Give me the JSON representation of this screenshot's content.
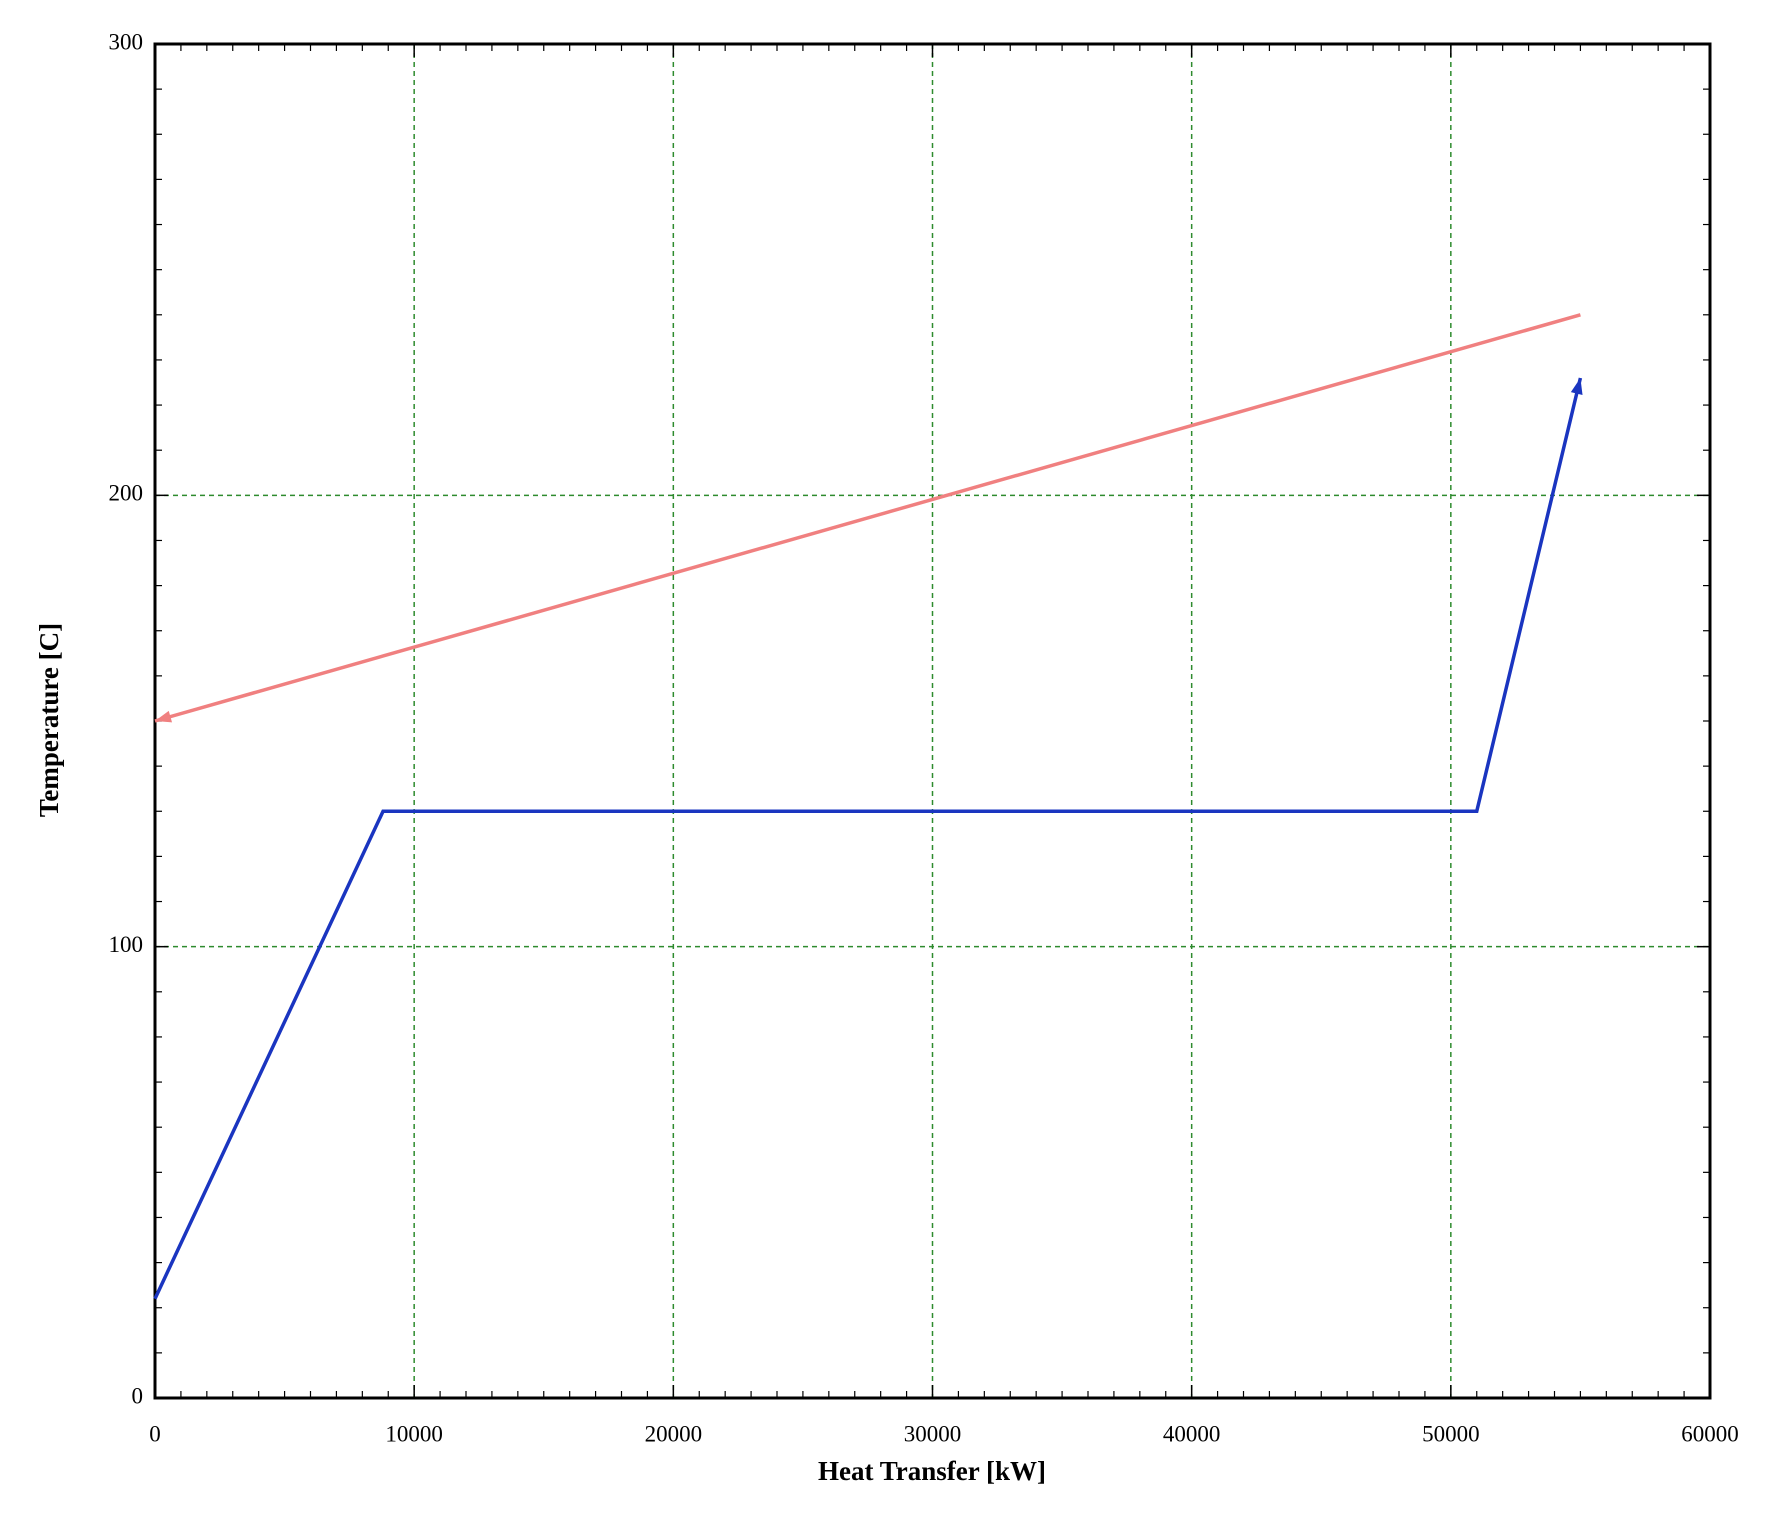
{
  "chart_data": {
    "type": "line",
    "xlabel": "Heat Transfer [kW]",
    "ylabel": "Temperature [C]",
    "xlim": [
      0,
      60000
    ],
    "xticks": [
      0,
      10000,
      20000,
      30000,
      40000,
      50000,
      60000
    ],
    "ylim": [
      0,
      300
    ],
    "yticks": [
      0,
      100,
      200,
      300
    ],
    "grid": true,
    "grid_color": "#2e8b2e",
    "series": [
      {
        "color": "#f08080",
        "x": [
          55000,
          0
        ],
        "values": [
          240,
          150
        ]
      },
      {
        "color": "#1a35c0",
        "x": [
          0,
          8800,
          51000,
          55000
        ],
        "values": [
          22,
          130,
          130,
          226
        ]
      }
    ]
  }
}
